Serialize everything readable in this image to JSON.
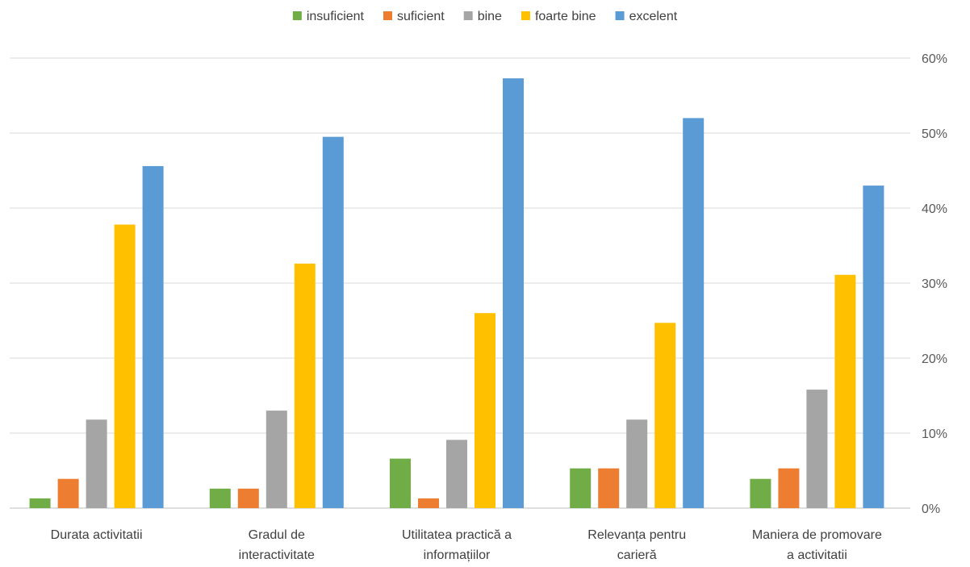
{
  "chart_data": {
    "type": "bar",
    "title": "",
    "xlabel": "",
    "ylabel": "",
    "ylim": [
      0,
      60
    ],
    "y_ticks": [
      "0%",
      "10%",
      "20%",
      "30%",
      "40%",
      "50%",
      "60%"
    ],
    "y_axis_position": "right",
    "grid": true,
    "legend_position": "top",
    "categories": [
      [
        "Durata activitatii"
      ],
      [
        "Gradul de",
        "interactivitate"
      ],
      [
        "Utilitatea practică a",
        "informațiilor"
      ],
      [
        "Relevanța pentru",
        "carieră"
      ],
      [
        "Maniera de promovare",
        "a activitatii"
      ]
    ],
    "series": [
      {
        "name": "insuficient",
        "color": "#70ad47",
        "values": [
          1.3,
          2.6,
          6.6,
          5.3,
          3.9
        ]
      },
      {
        "name": "suficient",
        "color": "#ed7d31",
        "values": [
          3.9,
          2.6,
          1.3,
          5.3,
          5.3
        ]
      },
      {
        "name": "bine",
        "color": "#a5a5a5",
        "values": [
          11.8,
          13.0,
          9.1,
          11.8,
          15.8
        ]
      },
      {
        "name": "foarte bine",
        "color": "#ffc000",
        "values": [
          37.8,
          32.6,
          26.0,
          24.7,
          31.1
        ]
      },
      {
        "name": "excelent",
        "color": "#5b9bd5",
        "values": [
          45.6,
          49.5,
          57.3,
          52.0,
          43.0
        ]
      }
    ]
  }
}
